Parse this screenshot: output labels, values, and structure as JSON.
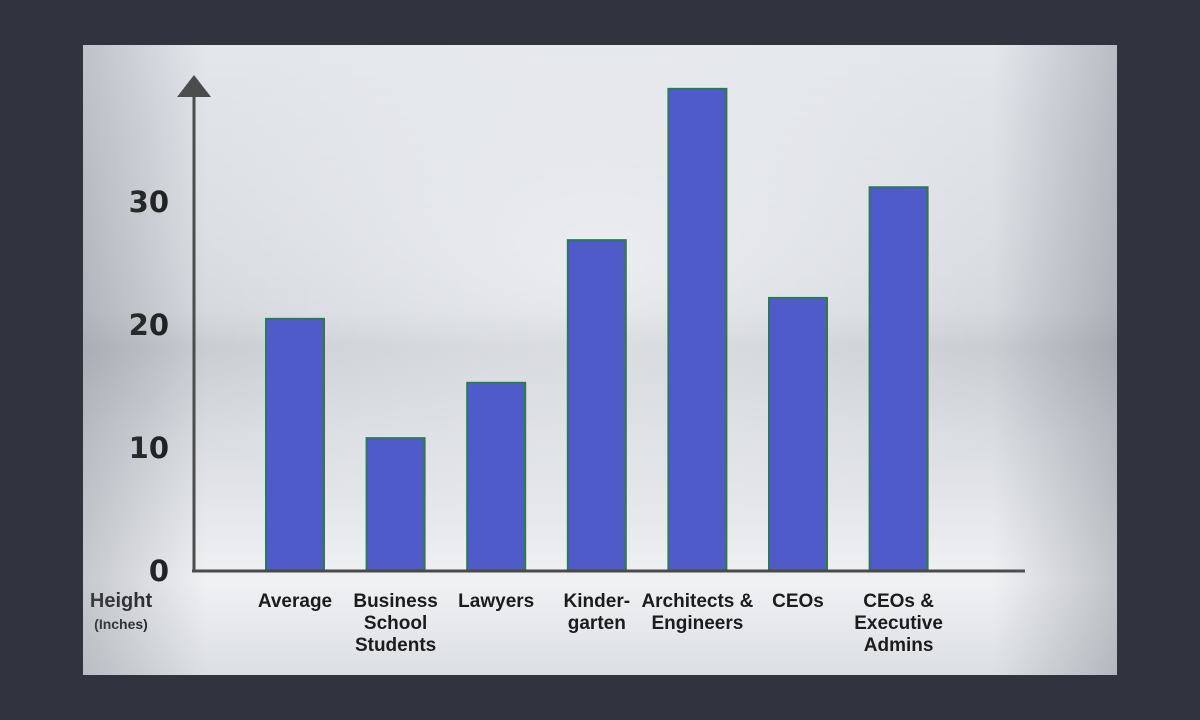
{
  "chart_data": {
    "type": "bar",
    "categories": [
      [
        "Average"
      ],
      [
        "Business",
        "School",
        "Students"
      ],
      [
        "Lawyers"
      ],
      [
        "Kinder-",
        "garten"
      ],
      [
        "Architects &",
        "Engineers"
      ],
      [
        "CEOs"
      ],
      [
        "CEOs &",
        "Executive",
        "Admins"
      ]
    ],
    "values": [
      20.5,
      10.8,
      15.3,
      26.9,
      39.2,
      22.2,
      31.2
    ],
    "yticks": [
      0,
      10,
      20,
      30
    ],
    "ylim": [
      0,
      40
    ],
    "ylabel": "Height",
    "yunit": "(Inches)",
    "bar_color": "#4f5bc9",
    "bar_edge_color": "#2e7a4c",
    "axis_color": "#4a4a4a",
    "grid": false
  }
}
